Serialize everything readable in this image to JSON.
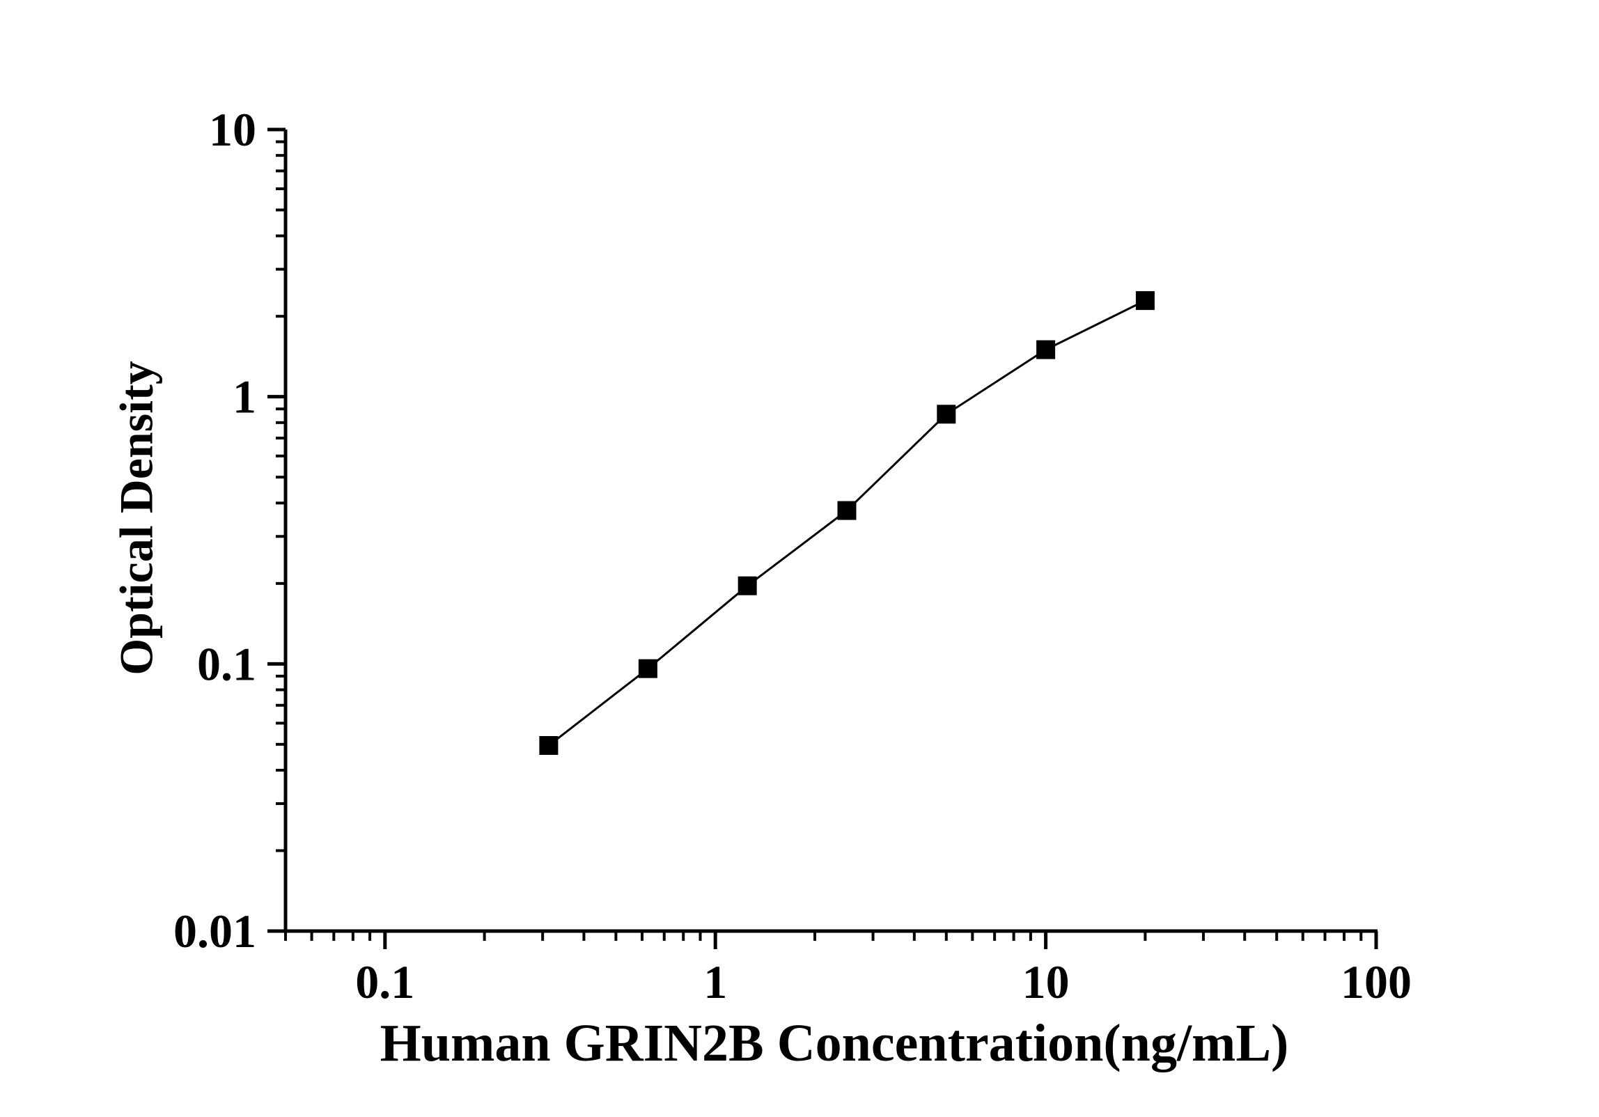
{
  "page": {
    "background_color": "#ffffff",
    "ink_color": "#000000"
  },
  "chart_data": {
    "type": "line",
    "title": "",
    "xlabel": "Human GRIN2B Concentration(ng/mL)",
    "ylabel": "Optical Density",
    "x_scale": "log",
    "y_scale": "log",
    "xlim": [
      0.05,
      100
    ],
    "ylim": [
      0.01,
      10
    ],
    "grid": "off",
    "legend": "none",
    "x_major_ticks": [
      {
        "value": 0.1,
        "label": "0.1"
      },
      {
        "value": 1,
        "label": "1"
      },
      {
        "value": 10,
        "label": "10"
      },
      {
        "value": 100,
        "label": "100"
      }
    ],
    "y_major_ticks": [
      {
        "value": 0.01,
        "label": "0.01"
      },
      {
        "value": 0.1,
        "label": "0.1"
      },
      {
        "value": 1,
        "label": "1"
      },
      {
        "value": 10,
        "label": "10"
      }
    ],
    "x_minor_ticks": [
      0.05,
      0.06,
      0.07,
      0.08,
      0.09,
      0.2,
      0.3,
      0.4,
      0.5,
      0.6,
      0.7,
      0.8,
      0.9,
      2,
      3,
      4,
      5,
      6,
      7,
      8,
      9,
      20,
      30,
      40,
      50,
      60,
      70,
      80,
      90
    ],
    "y_minor_ticks": [
      0.02,
      0.03,
      0.04,
      0.05,
      0.06,
      0.07,
      0.08,
      0.09,
      0.2,
      0.3,
      0.4,
      0.5,
      0.6,
      0.7,
      0.8,
      0.9,
      2,
      3,
      4,
      5,
      6,
      7,
      8,
      9
    ],
    "series": [
      {
        "name": "standard-curve",
        "marker": "square",
        "line_color": "#000000",
        "marker_color": "#000000",
        "points": [
          {
            "x": 0.313,
            "y": 0.0495
          },
          {
            "x": 0.625,
            "y": 0.096
          },
          {
            "x": 1.25,
            "y": 0.196
          },
          {
            "x": 2.5,
            "y": 0.375
          },
          {
            "x": 5,
            "y": 0.86
          },
          {
            "x": 10,
            "y": 1.5
          },
          {
            "x": 20,
            "y": 2.29
          }
        ]
      }
    ]
  }
}
